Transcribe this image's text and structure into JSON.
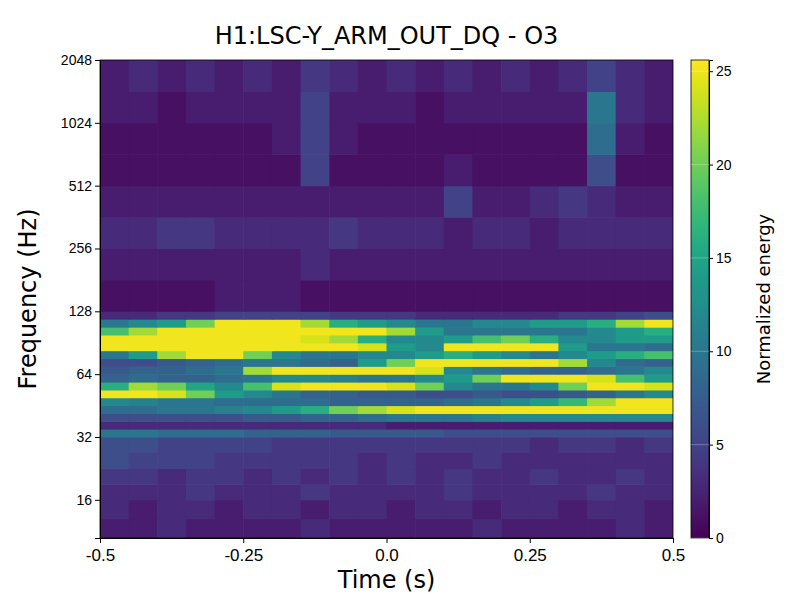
{
  "chart_data": {
    "type": "heatmap",
    "title": "H1:LSC-Y_ARM_OUT_DQ - O3",
    "x_label": "Time (s)",
    "y_label": "Frequency (Hz)",
    "log": "y",
    "x": [
      -0.5,
      -0.45,
      -0.4,
      -0.35,
      -0.3,
      -0.25,
      -0.2,
      -0.15,
      -0.1,
      -0.05,
      0,
      0.05,
      0.1,
      0.15,
      0.2,
      0.25,
      0.3,
      0.35,
      0.4,
      0.45,
      0.5
    ],
    "y": [
      10.5,
      13,
      16,
      19,
      22.6,
      27,
      32,
      34.9,
      38.1,
      41.5,
      45.3,
      49.4,
      53.8,
      58.7,
      64,
      69.8,
      76.1,
      83,
      90.5,
      98.7,
      107.6,
      117.4,
      128,
      181,
      256,
      362,
      512,
      724,
      1024,
      1448,
      2048
    ],
    "values": [
      [
        2,
        2,
        3,
        2,
        2,
        2,
        2,
        3,
        2,
        2,
        2,
        2,
        2,
        3,
        2,
        2,
        2,
        2,
        3,
        2
      ],
      [
        3,
        2,
        3,
        3,
        2,
        3,
        3,
        2,
        3,
        3,
        2,
        3,
        3,
        2,
        3,
        3,
        2,
        3,
        3,
        2
      ],
      [
        3,
        3,
        3,
        4,
        3,
        3,
        3,
        4,
        3,
        3,
        3,
        3,
        4,
        3,
        3,
        3,
        3,
        4,
        3,
        3
      ],
      [
        4,
        4,
        3,
        4,
        4,
        3,
        4,
        3,
        4,
        3,
        4,
        3,
        4,
        3,
        3,
        4,
        3,
        3,
        4,
        3
      ],
      [
        6,
        5,
        5,
        5,
        4,
        4,
        4,
        4,
        4,
        3,
        4,
        3,
        3,
        4,
        3,
        3,
        3,
        3,
        3,
        3
      ],
      [
        6,
        6,
        5,
        5,
        5,
        5,
        4,
        4,
        4,
        4,
        4,
        4,
        4,
        4,
        4,
        3,
        4,
        4,
        3,
        4
      ],
      [
        10,
        10,
        9,
        9,
        9,
        8,
        8,
        8,
        7,
        7,
        7,
        7,
        6,
        6,
        6,
        6,
        6,
        6,
        6,
        6
      ],
      [
        3,
        3,
        3,
        3,
        3,
        3,
        3,
        3,
        3,
        3,
        2,
        2,
        2,
        2,
        2,
        2,
        2,
        2,
        2,
        2
      ],
      [
        6,
        6,
        6,
        6,
        6,
        7,
        7,
        8,
        8,
        9,
        10,
        10,
        10,
        11,
        12,
        12,
        12,
        12,
        12,
        12
      ],
      [
        9,
        9,
        10,
        10,
        11,
        12,
        14,
        16,
        20,
        22,
        24,
        25,
        25,
        25,
        25,
        25,
        25,
        25,
        25,
        25
      ],
      [
        12,
        11,
        10,
        10,
        9,
        9,
        9,
        9,
        8,
        8,
        8,
        8,
        9,
        10,
        12,
        14,
        17,
        22,
        25,
        25
      ],
      [
        25,
        25,
        24,
        20,
        14,
        12,
        10,
        8,
        8,
        7,
        7,
        6,
        6,
        7,
        6,
        6,
        7,
        8,
        10,
        12
      ],
      [
        16,
        22,
        20,
        15,
        12,
        18,
        24,
        25,
        25,
        25,
        24,
        20,
        12,
        10,
        10,
        12,
        20,
        25,
        25,
        24
      ],
      [
        8,
        9,
        8,
        8,
        9,
        10,
        12,
        12,
        11,
        10,
        10,
        12,
        14,
        20,
        25,
        25,
        25,
        24,
        18,
        14
      ],
      [
        7,
        8,
        8,
        9,
        10,
        22,
        25,
        25,
        25,
        25,
        25,
        24,
        12,
        10,
        9,
        8,
        8,
        9,
        10,
        12
      ],
      [
        6,
        6,
        7,
        8,
        9,
        10,
        10,
        9,
        8,
        14,
        20,
        25,
        25,
        25,
        25,
        25,
        22,
        12,
        9,
        8
      ],
      [
        10,
        14,
        22,
        25,
        25,
        20,
        12,
        10,
        10,
        12,
        12,
        14,
        16,
        14,
        12,
        10,
        12,
        14,
        16,
        18
      ],
      [
        25,
        25,
        25,
        25,
        25,
        25,
        25,
        25,
        25,
        24,
        14,
        12,
        25,
        25,
        25,
        25,
        14,
        10,
        10,
        9
      ],
      [
        25,
        25,
        25,
        25,
        25,
        25,
        25,
        24,
        22,
        16,
        12,
        12,
        14,
        18,
        20,
        16,
        12,
        12,
        14,
        14
      ],
      [
        18,
        22,
        25,
        25,
        25,
        25,
        25,
        25,
        25,
        25,
        22,
        14,
        10,
        10,
        10,
        10,
        10,
        12,
        14,
        16
      ],
      [
        10,
        12,
        14,
        20,
        25,
        25,
        25,
        22,
        16,
        14,
        12,
        10,
        10,
        12,
        12,
        14,
        14,
        16,
        22,
        25
      ],
      [
        3,
        3,
        4,
        4,
        5,
        5,
        5,
        5,
        4,
        4,
        4,
        3,
        3,
        3,
        3,
        3,
        4,
        4,
        5,
        6
      ],
      [
        1,
        1,
        1,
        1,
        2,
        2,
        2,
        1,
        1,
        1,
        1,
        1,
        1,
        1,
        1,
        1,
        1,
        1,
        1,
        1
      ],
      [
        2,
        2,
        2,
        2,
        2,
        2,
        2,
        3,
        2,
        2,
        2,
        2,
        2,
        2,
        2,
        2,
        2,
        2,
        2,
        2
      ],
      [
        3,
        3,
        4,
        4,
        3,
        3,
        3,
        3,
        4,
        3,
        3,
        3,
        2,
        3,
        3,
        2,
        3,
        3,
        3,
        3
      ],
      [
        2,
        2,
        2,
        2,
        2,
        2,
        2,
        2,
        2,
        2,
        2,
        2,
        5,
        2,
        2,
        3,
        4,
        3,
        2,
        2
      ],
      [
        1,
        1,
        1,
        1,
        1,
        1,
        1,
        5,
        1,
        1,
        1,
        1,
        2,
        1,
        1,
        1,
        1,
        6,
        1,
        1
      ],
      [
        1,
        1,
        1,
        1,
        1,
        1,
        2,
        5,
        2,
        1,
        1,
        1,
        1,
        1,
        1,
        1,
        1,
        9,
        2,
        1
      ],
      [
        2,
        2,
        1,
        2,
        2,
        2,
        2,
        5,
        2,
        2,
        2,
        1,
        2,
        2,
        2,
        2,
        2,
        10,
        3,
        2
      ],
      [
        2,
        3,
        2,
        3,
        2,
        3,
        2,
        4,
        3,
        2,
        3,
        2,
        3,
        2,
        3,
        2,
        3,
        5,
        3,
        2
      ]
    ],
    "xlim": [
      -0.5,
      0.5
    ],
    "xticks": [
      -0.5,
      -0.25,
      {
        "value": 0,
        "label": "0.0"
      },
      0.25,
      0.5
    ],
    "ylim": [
      10.5,
      2048
    ],
    "yticks": [
      16,
      32,
      64,
      128,
      256,
      512,
      1024,
      2048
    ],
    "colorbar": {
      "label": "Normalized energy",
      "clim": [
        0,
        25.6
      ],
      "ticks": [
        0,
        5,
        10,
        15,
        20,
        25
      ]
    }
  }
}
